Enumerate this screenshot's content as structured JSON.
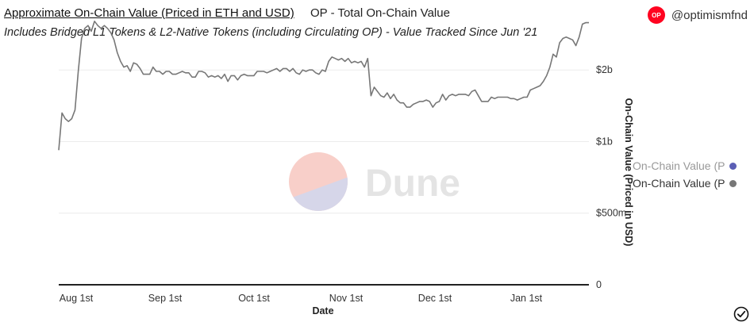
{
  "header": {
    "title": "Approximate On-Chain Value (Priced in ETH and USD)",
    "chart_name": "OP - Total On-Chain Value",
    "owner_handle": "@optimismfnd",
    "owner_avatar_text": "OP",
    "description": "Includes Bridged L1 Tokens & L2-Native Tokens (including Circulating OP) - Value Tracked Since Jun '21"
  },
  "watermark": {
    "text": "Dune"
  },
  "legend": [
    {
      "label": "On-Chain Value (P",
      "color": "#5b5fb5",
      "state": "hidden"
    },
    {
      "label": "On-Chain Value (P",
      "color": "#777777",
      "state": "visible"
    }
  ],
  "chart_data": {
    "type": "line",
    "title": "Approximate On-Chain Value (Priced in ETH and USD)",
    "xlabel": "Date",
    "ylabel": "On-Chain Value (Priced in USD)",
    "x_ticks": [
      "Aug 1st",
      "Sep 1st",
      "Oct 1st",
      "Nov 1st",
      "Dec 1st",
      "Jan 1st"
    ],
    "y_ticks": [
      "0",
      "$500m",
      "$1b",
      "$2b"
    ],
    "y_tick_values": [
      0,
      500000000,
      1000000000,
      1500000000
    ],
    "ylim": [
      0,
      1850000000
    ],
    "grid": true,
    "legend_position": "right",
    "start_date": "2022-07-30",
    "end_date": "2023-01-20",
    "series": [
      {
        "name": "On-Chain Value (P",
        "color": "#777777",
        "values": [
          0.94,
          1.2,
          1.16,
          1.14,
          1.16,
          1.22,
          1.49,
          1.72,
          1.79,
          1.81,
          1.77,
          1.84,
          1.81,
          1.79,
          1.81,
          1.79,
          1.76,
          1.71,
          1.62,
          1.56,
          1.52,
          1.53,
          1.49,
          1.55,
          1.54,
          1.51,
          1.47,
          1.47,
          1.47,
          1.52,
          1.49,
          1.49,
          1.47,
          1.49,
          1.49,
          1.47,
          1.47,
          1.48,
          1.49,
          1.48,
          1.48,
          1.45,
          1.45,
          1.49,
          1.49,
          1.48,
          1.45,
          1.46,
          1.45,
          1.46,
          1.44,
          1.47,
          1.42,
          1.46,
          1.46,
          1.43,
          1.46,
          1.47,
          1.46,
          1.46,
          1.46,
          1.49,
          1.49,
          1.49,
          1.48,
          1.49,
          1.5,
          1.51,
          1.49,
          1.51,
          1.51,
          1.49,
          1.51,
          1.48,
          1.47,
          1.5,
          1.49,
          1.5,
          1.5,
          1.48,
          1.47,
          1.5,
          1.49,
          1.56,
          1.59,
          1.58,
          1.57,
          1.58,
          1.56,
          1.58,
          1.55,
          1.56,
          1.55,
          1.56,
          1.52,
          1.58,
          1.32,
          1.38,
          1.35,
          1.32,
          1.31,
          1.34,
          1.3,
          1.33,
          1.29,
          1.27,
          1.27,
          1.24,
          1.24,
          1.26,
          1.27,
          1.28,
          1.28,
          1.29,
          1.28,
          1.24,
          1.27,
          1.28,
          1.33,
          1.29,
          1.32,
          1.33,
          1.32,
          1.33,
          1.33,
          1.33,
          1.32,
          1.35,
          1.36,
          1.32,
          1.28,
          1.28,
          1.28,
          1.31,
          1.3,
          1.31,
          1.31,
          1.31,
          1.31,
          1.3,
          1.3,
          1.29,
          1.3,
          1.31,
          1.31,
          1.36,
          1.37,
          1.38,
          1.39,
          1.42,
          1.46,
          1.52,
          1.61,
          1.59,
          1.69,
          1.72,
          1.73,
          1.72,
          1.71,
          1.67,
          1.73,
          1.82,
          1.83,
          1.83
        ]
      }
    ]
  }
}
